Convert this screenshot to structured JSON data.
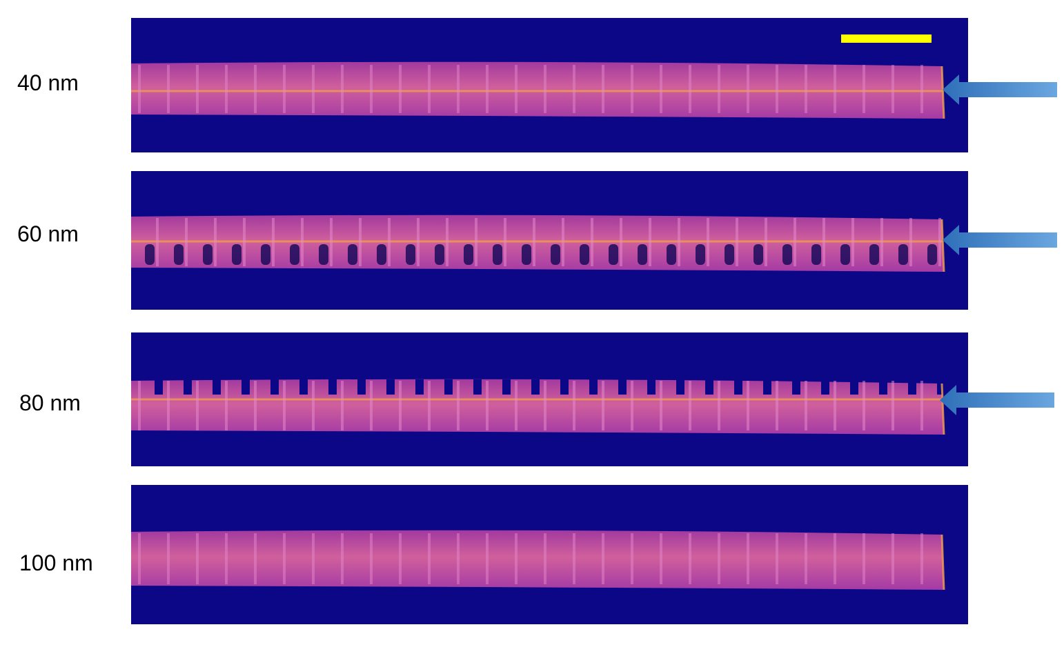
{
  "panels": [
    {
      "id": "p40",
      "label": "40 nm",
      "arrow": true,
      "pattern": "faint-stripes"
    },
    {
      "id": "p60",
      "label": "60 nm",
      "arrow": true,
      "pattern": "dark-holes"
    },
    {
      "id": "p80",
      "label": "80 nm",
      "arrow": true,
      "pattern": "teeth"
    },
    {
      "id": "p100",
      "label": "100 nm",
      "arrow": false,
      "pattern": "faint-stripes"
    }
  ],
  "colors": {
    "background": "#0b0786",
    "band": "#c04fb0",
    "band_bright": "#f2a04a",
    "stripe": "#e98bd0",
    "scale_bar": "#ffff00",
    "arrow": "#4a8fd4"
  },
  "stripe_count": 28
}
